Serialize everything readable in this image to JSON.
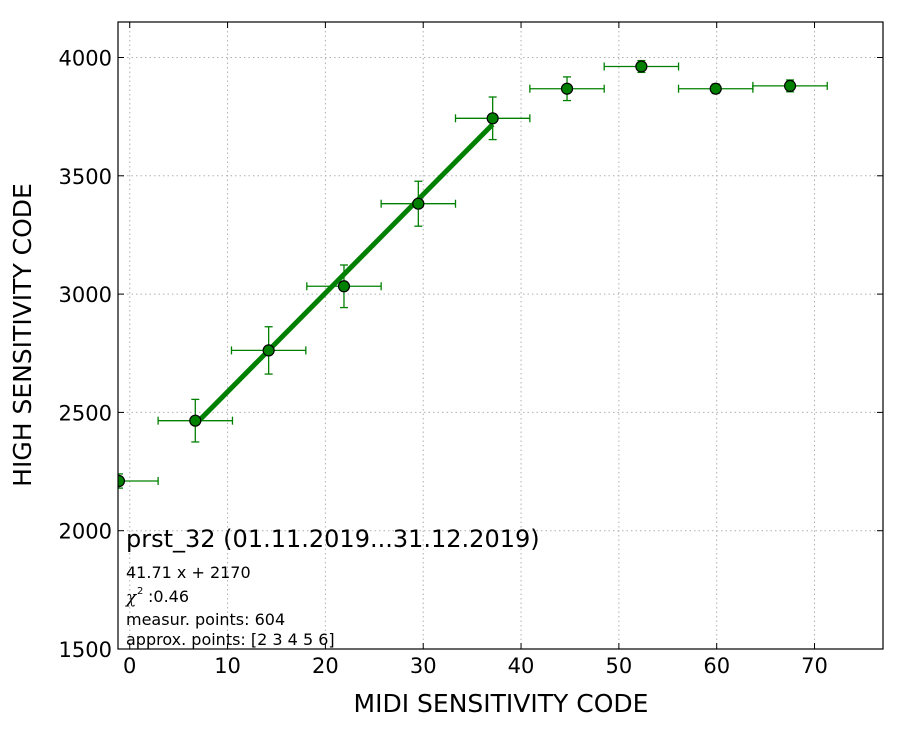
{
  "chart_data": {
    "type": "scatter",
    "title": "",
    "xlabel": "MIDI SENSITIVITY CODE",
    "ylabel": "HIGH SENSITIVITY CODE",
    "xlim": [
      -1.2,
      77
    ],
    "ylim": [
      1500,
      4150
    ],
    "x_ticks": [
      0,
      10,
      20,
      30,
      40,
      50,
      60,
      70
    ],
    "y_ticks": [
      1500,
      2000,
      2500,
      3000,
      3500,
      4000
    ],
    "grid": true,
    "colors": {
      "points": "#008000",
      "point_edge": "#000000",
      "fit": "#008000",
      "grid": "#b0b0b0"
    },
    "points": [
      {
        "x": -1.1,
        "y": 2210,
        "xerr": 4.0,
        "yerr": 30
      },
      {
        "x": 6.7,
        "y": 2465,
        "xerr": 3.8,
        "yerr": 90
      },
      {
        "x": 14.2,
        "y": 2762,
        "xerr": 3.8,
        "yerr": 100
      },
      {
        "x": 21.9,
        "y": 3033,
        "xerr": 3.8,
        "yerr": 90
      },
      {
        "x": 29.5,
        "y": 3382,
        "xerr": 3.8,
        "yerr": 95
      },
      {
        "x": 37.1,
        "y": 3743,
        "xerr": 3.8,
        "yerr": 90
      },
      {
        "x": 44.7,
        "y": 3868,
        "xerr": 3.8,
        "yerr": 50
      },
      {
        "x": 52.3,
        "y": 3962,
        "xerr": 3.8,
        "yerr": 25
      },
      {
        "x": 59.9,
        "y": 3868,
        "xerr": 3.8,
        "yerr": 20
      },
      {
        "x": 67.5,
        "y": 3880,
        "xerr": 3.8,
        "yerr": 25
      }
    ],
    "fit_line": {
      "slope": 41.71,
      "intercept": 2170,
      "x_range": [
        6.7,
        37.1
      ]
    },
    "annotations": {
      "heading": "prst_32 (01.11.2019...31.12.2019)",
      "fit_equation": "41.71 x + 2170",
      "chi_symbol": "χ",
      "chi_power": "2",
      "chi_value": ":0.46",
      "measured": "measur. points: 604",
      "approx": "approx. points: [2 3 4 5 6]"
    }
  }
}
